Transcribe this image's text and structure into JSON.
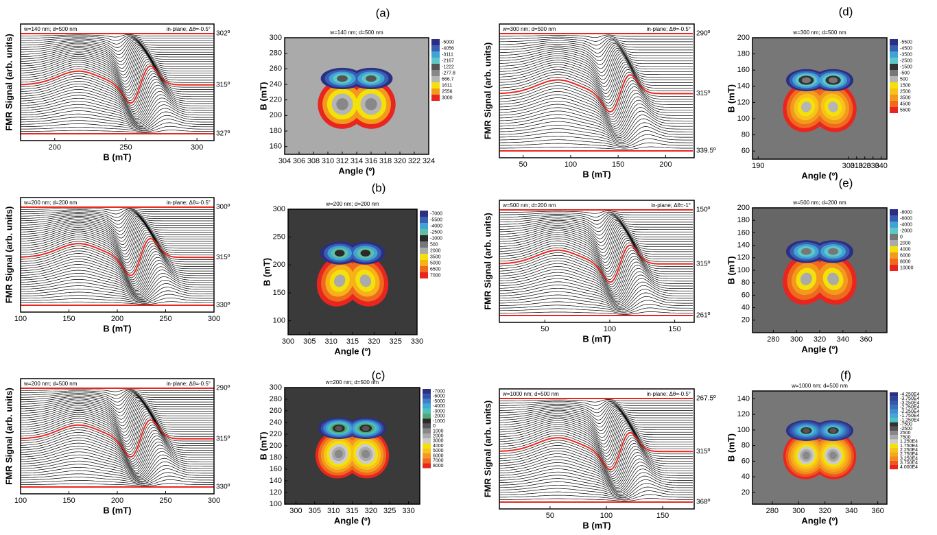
{
  "chart_data": [
    {
      "type": "waterfall",
      "title": "w=140 nm; d=500 nm",
      "annotation": "in-plane; Δθ=-0.5°",
      "xlabel": "B (mT)",
      "ylabel": "FMR Signal (arb. units)",
      "xlim": [
        176,
        312
      ],
      "xticks": [
        200,
        250,
        300
      ],
      "trace_labels": [
        "302º",
        "315º",
        "327º"
      ],
      "trace_color": "#000000",
      "highlight_color": "#e8261f"
    },
    {
      "type": "contour",
      "panel": "(a)",
      "title": "w=140 nm; d=500 nm",
      "xlabel": "Angle (º)",
      "ylabel": "B (mT)",
      "xlim": [
        304,
        324
      ],
      "xticks": [
        304,
        306,
        308,
        310,
        312,
        314,
        316,
        318,
        320,
        322,
        324
      ],
      "ylim": [
        150,
        300
      ],
      "yticks": [
        160,
        180,
        200,
        220,
        240,
        260,
        280,
        300
      ],
      "background": "#aaaaaa",
      "levels": [
        -5000,
        -4056,
        -3111,
        -2167,
        -1222,
        -277.8,
        666.7,
        1611,
        2556,
        3000
      ],
      "colors": [
        "#2a2f85",
        "#3a5fb0",
        "#3fa3d8",
        "#5fc6c8",
        "#555555",
        "#888888",
        "#b5b5b5",
        "#f5e10a",
        "#f39a1e",
        "#e8261f"
      ]
    },
    {
      "type": "waterfall",
      "title": "w=200 nm; d=200 nm",
      "annotation": "in-plane; Δθ=-0.5°",
      "xlabel": "B (mT)",
      "ylabel": "FMR Signal (arb. units)",
      "xlim": [
        100,
        300
      ],
      "xticks": [
        100,
        150,
        200,
        250,
        300
      ],
      "trace_labels": [
        "300º",
        "315º",
        "330º"
      ],
      "trace_color": "#000000",
      "highlight_color": "#e8261f"
    },
    {
      "type": "contour",
      "panel": "(b)",
      "title": "w=200 nm; d=200 nm",
      "xlabel": "Angle (º)",
      "ylabel": "B (mT)",
      "xlim": [
        300,
        330
      ],
      "xticks": [
        300,
        305,
        310,
        315,
        320,
        325,
        330
      ],
      "ylim": [
        75,
        300
      ],
      "yticks": [
        100,
        150,
        200,
        250,
        300
      ],
      "background": "#3a3a3a",
      "levels": [
        -7000,
        -5500,
        -4000,
        -2500,
        -1000,
        500,
        2000,
        3500,
        5000,
        6500,
        7000
      ],
      "colors": [
        "#2a2f85",
        "#3a5fb0",
        "#3fa3d8",
        "#5fbfa0",
        "#2a2a2a",
        "#777777",
        "#aaaaaa",
        "#f5e10a",
        "#f7b21a",
        "#f06a1e",
        "#e8261f"
      ]
    },
    {
      "type": "waterfall",
      "title": "w=200 nm; d=500 nm",
      "annotation": "in-plane; Δθ=-0.5°",
      "xlabel": "B (mT)",
      "ylabel": "FMR Signal (arb. units)",
      "xlim": [
        100,
        300
      ],
      "xticks": [
        100,
        150,
        200,
        250,
        300
      ],
      "trace_labels": [
        "290º",
        "315º",
        "330º"
      ],
      "trace_color": "#000000",
      "highlight_color": "#e8261f"
    },
    {
      "type": "contour",
      "panel": "(c)",
      "title": "w=200 nm; d=500 nm",
      "xlabel": "Angle (º)",
      "ylabel": "B (mT)",
      "xlim": [
        297,
        333
      ],
      "xticks": [
        300,
        305,
        310,
        315,
        320,
        325,
        330
      ],
      "ylim": [
        100,
        300
      ],
      "yticks": [
        100,
        120,
        140,
        160,
        180,
        200,
        220,
        240,
        260,
        280,
        300
      ],
      "background": "#3a3a3a",
      "levels": [
        -7000,
        -6000,
        -5000,
        -4000,
        -3000,
        -2000,
        -1000,
        0,
        1000,
        2000,
        3000,
        4000,
        5000,
        6000,
        7000,
        8000
      ],
      "colors": [
        "#2a2f85",
        "#3350a8",
        "#3f7ec8",
        "#3fa8d8",
        "#4fc0b8",
        "#4fa870",
        "#2a2a2a",
        "#555555",
        "#888888",
        "#aaaaaa",
        "#cccccc",
        "#f5e10a",
        "#f7c21a",
        "#f39a1e",
        "#f06a1e",
        "#e8261f"
      ]
    },
    {
      "type": "waterfall",
      "title": "w=300 nm; d=500 nm",
      "annotation": "in-plane; Δθ=-0.5°",
      "xlabel": "B (mT)",
      "ylabel": "FMR Signal (arb. units)",
      "xlim": [
        25,
        230
      ],
      "xticks": [
        50,
        100,
        150,
        200
      ],
      "trace_labels": [
        "290º",
        "315º",
        "339.5º"
      ],
      "trace_color": "#000000",
      "highlight_color": "#e8261f"
    },
    {
      "type": "contour",
      "panel": "(d)",
      "title": "w=300 nm; d=500 nm",
      "xlabel": "Angle (º)",
      "ylabel": "B (mT)",
      "xlim": [
        183,
        347
      ],
      "xticks": [
        190,
        300,
        310,
        320,
        330,
        340
      ],
      "ylim": [
        50,
        200
      ],
      "yticks": [
        60,
        80,
        100,
        120,
        140,
        160,
        180,
        200
      ],
      "background": "#777777",
      "levels": [
        -5500,
        -4500,
        -3500,
        -2500,
        -1500,
        -500,
        500,
        1500,
        2500,
        3500,
        4500,
        5500
      ],
      "colors": [
        "#2a2f85",
        "#3a5fb0",
        "#3fa3d8",
        "#5fc6c8",
        "#333333",
        "#777777",
        "#b5b5b5",
        "#f5e10a",
        "#f7c21a",
        "#f39a1e",
        "#f06a1e",
        "#e8261f"
      ]
    },
    {
      "type": "waterfall",
      "title": "w=500 nm; d=200 nm",
      "annotation": "in-plane; Δθ=-1°",
      "xlabel": "B (mT)",
      "ylabel": "FMR Signal (arb. units)",
      "xlim": [
        15,
        165
      ],
      "xticks": [
        50,
        100,
        150
      ],
      "trace_labels": [
        "150º",
        "315º",
        "261º"
      ],
      "trace_color": "#000000",
      "highlight_color": "#e8261f"
    },
    {
      "type": "contour",
      "panel": "(e)",
      "title": "w=500 nm; d=200 nm",
      "xlabel": "Angle (º)",
      "ylabel": "B (mT)",
      "xlim": [
        262,
        378
      ],
      "xticks": [
        280,
        300,
        320,
        340,
        360
      ],
      "ylim": [
        0,
        200
      ],
      "yticks": [
        20,
        40,
        60,
        80,
        100,
        120,
        140,
        160,
        180,
        200
      ],
      "background": "#666666",
      "levels": [
        -8000,
        -6000,
        -4000,
        -2000,
        0,
        2000,
        4000,
        6000,
        8000,
        10000
      ],
      "colors": [
        "#2a2f85",
        "#3a5fb0",
        "#3fa3d8",
        "#5fc6c8",
        "#777777",
        "#aaaaaa",
        "#f5e10a",
        "#f39a1e",
        "#f06a1e",
        "#e8261f"
      ]
    },
    {
      "type": "waterfall",
      "title": "w=1000 nm; d=500 nm",
      "annotation": "in-plane; Δθ=-0.5°",
      "xlabel": "B (mT)",
      "ylabel": "FMR Signal (arb. units)",
      "xlim": [
        5,
        178
      ],
      "xticks": [
        50,
        100,
        150
      ],
      "trace_labels": [
        "267.5º",
        "315º",
        "368º"
      ],
      "trace_color": "#000000",
      "highlight_color": "#e8261f"
    },
    {
      "type": "contour",
      "panel": "(f)",
      "title": "w=1000 nm; d=500 nm",
      "xlabel": "Angle (º)",
      "ylabel": "B (mT)",
      "xlim": [
        265,
        367
      ],
      "xticks": [
        280,
        300,
        320,
        340,
        360
      ],
      "ylim": [
        5,
        150
      ],
      "yticks": [
        20,
        40,
        60,
        80,
        100,
        120,
        140
      ],
      "background": "#777777",
      "levels": [
        {
          "value": -42500,
          "label": "-4.250E4"
        },
        {
          "value": -37500,
          "label": "-3.750E4"
        },
        {
          "value": -32500,
          "label": "-3.250E4"
        },
        {
          "value": -27500,
          "label": "-2.750E4"
        },
        {
          "value": -22500,
          "label": "-2.250E4"
        },
        {
          "value": -17500,
          "label": "-1.750E4"
        },
        {
          "value": -12500,
          "label": "-1.250E4"
        },
        -7500,
        -2500,
        2500,
        7500,
        {
          "value": 12500,
          "label": "1.250E4"
        },
        {
          "value": 17500,
          "label": "1.750E4"
        },
        {
          "value": 22500,
          "label": "2.250E4"
        },
        {
          "value": 27500,
          "label": "2.750E4"
        },
        {
          "value": 32500,
          "label": "3.250E4"
        },
        {
          "value": 37500,
          "label": "3.750E4"
        },
        {
          "value": 40000,
          "label": "4.000E4"
        }
      ],
      "colors": [
        "#2a2f85",
        "#2f4398",
        "#3559ab",
        "#3a70be",
        "#3f8ccf",
        "#3fa8d8",
        "#4fc0c0",
        "#333333",
        "#555555",
        "#888888",
        "#aaaaaa",
        "#cccccc",
        "#f5e10a",
        "#f7c21a",
        "#f5a81c",
        "#f38a1e",
        "#f0561e",
        "#e8261f"
      ]
    }
  ]
}
